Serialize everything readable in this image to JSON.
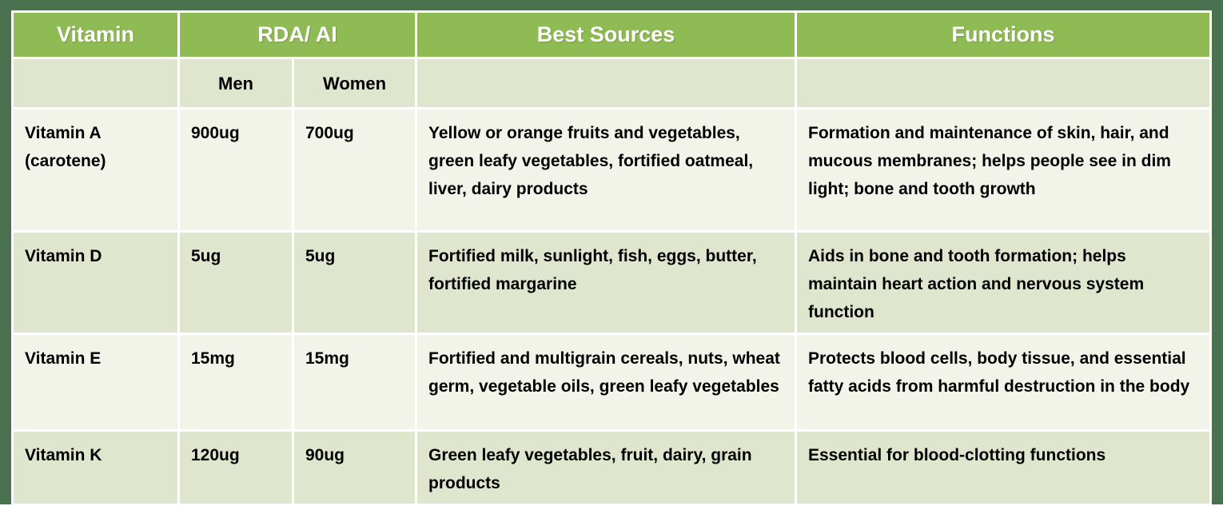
{
  "table": {
    "title_semantic": "Vitamin RDA table",
    "header": {
      "vitamin": "Vitamin",
      "rda_ai": "RDA/ AI",
      "best_sources": "Best Sources",
      "functions": "Functions"
    },
    "subheader": {
      "men": "Men",
      "women": "Women"
    },
    "rows": [
      {
        "vitamin": "Vitamin A (carotene)",
        "men": "900ug",
        "women": "700ug",
        "best_sources": "Yellow or orange fruits and vegetables, green leafy vegetables, fortified oatmeal, liver, dairy products",
        "functions": "Formation and maintenance of skin, hair, and mucous membranes; helps people see in dim light; bone and tooth growth"
      },
      {
        "vitamin": "Vitamin D",
        "men": "5ug",
        "women": "5ug",
        "best_sources": "Fortified milk, sunlight, fish, eggs, butter, fortified margarine",
        "functions": "Aids in bone and tooth formation; helps maintain heart action and nervous system function"
      },
      {
        "vitamin": "Vitamin E",
        "men": "15mg",
        "women": "15mg",
        "best_sources": "Fortified and multigrain cereals, nuts, wheat germ, vegetable oils, green leafy vegetables",
        "functions": "Protects blood cells, body tissue, and essential fatty acids from harmful destruction in the body"
      },
      {
        "vitamin": "Vitamin K",
        "men": "120ug",
        "women": "90ug",
        "best_sources": "Green leafy vegetables, fruit, dairy, grain products",
        "functions": "Essential for blood-clotting functions"
      }
    ]
  },
  "colors": {
    "frame_border": "#4A7150",
    "header_bg": "#8FBB55",
    "header_text": "#FFFFFF",
    "row_band_light": "#F2F4EA",
    "row_band_green": "#DEE6CE",
    "cell_divider": "#FFFFFF",
    "body_text": "#000000"
  }
}
